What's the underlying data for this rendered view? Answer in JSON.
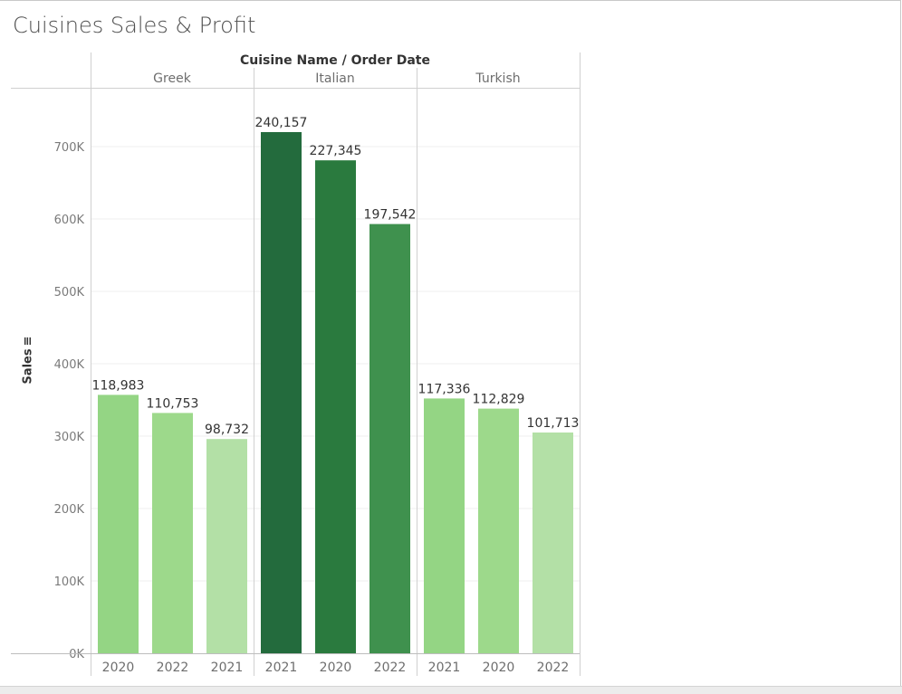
{
  "title": "Cuisines Sales & Profit",
  "header_label": "Cuisine Name  /  Order Date",
  "chart_data": {
    "type": "bar",
    "title": "Cuisines Sales & Profit",
    "ylabel": "Sales",
    "xlabel": "",
    "ylim": [
      0,
      780000
    ],
    "yticks": [
      0,
      100000,
      200000,
      300000,
      400000,
      500000,
      600000,
      700000
    ],
    "ytick_labels": [
      "0K",
      "100K",
      "200K",
      "300K",
      "400K",
      "500K",
      "600K",
      "700K"
    ],
    "grid": true,
    "color_encoding": "profit",
    "groups": [
      {
        "name": "Greek",
        "bars": [
          {
            "year": "2020",
            "sales": 357000,
            "label": "118,983",
            "color": "#94d584"
          },
          {
            "year": "2022",
            "sales": 332000,
            "label": "110,753",
            "color": "#9dd98b"
          },
          {
            "year": "2021",
            "sales": 296000,
            "label": "98,732",
            "color": "#b3e0a6"
          }
        ]
      },
      {
        "name": "Italian",
        "bars": [
          {
            "year": "2021",
            "sales": 720000,
            "label": "240,157",
            "color": "#236b3d"
          },
          {
            "year": "2020",
            "sales": 681000,
            "label": "227,345",
            "color": "#2a7a3e"
          },
          {
            "year": "2022",
            "sales": 593000,
            "label": "197,542",
            "color": "#3f914e"
          }
        ]
      },
      {
        "name": "Turkish",
        "bars": [
          {
            "year": "2021",
            "sales": 352000,
            "label": "117,336",
            "color": "#94d584"
          },
          {
            "year": "2020",
            "sales": 338000,
            "label": "112,829",
            "color": "#9dd98b"
          },
          {
            "year": "2022",
            "sales": 305000,
            "label": "101,713",
            "color": "#b3e0a6"
          }
        ]
      }
    ]
  }
}
